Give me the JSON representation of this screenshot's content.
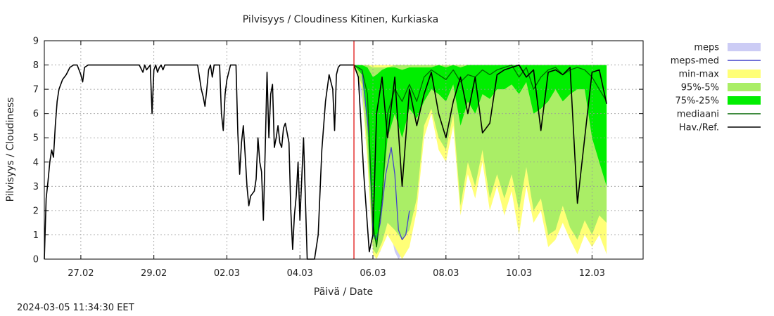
{
  "chart_data": {
    "type": "area",
    "title": "Pilvisyys / Cloudiness Kitinen, Kurkiaska",
    "xlabel": "Päivä / Date",
    "ylabel": "Pilvisyys / Cloudiness",
    "ylim": [
      0,
      9
    ],
    "xlim_days": [
      0,
      16.4
    ],
    "y_ticks": [
      0,
      1,
      2,
      3,
      4,
      5,
      6,
      7,
      8,
      9
    ],
    "x_ticks": [
      {
        "label": "27.02",
        "day": 1
      },
      {
        "label": "29.02",
        "day": 3
      },
      {
        "label": "02.03",
        "day": 5
      },
      {
        "label": "04.03",
        "day": 7
      },
      {
        "label": "06.03",
        "day": 9
      },
      {
        "label": "08.03",
        "day": 11
      },
      {
        "label": "10.03",
        "day": 13
      },
      {
        "label": "12.03",
        "day": 15
      }
    ],
    "grid": true,
    "legend_position": "right",
    "forecast_start_day": 8.48,
    "timestamp": "2024-03-05 11:34:30 EET",
    "legend": [
      {
        "label": "meps",
        "kind": "box",
        "color": "#ccccf5"
      },
      {
        "label": "meps-med",
        "kind": "line",
        "color": "#4444cc"
      },
      {
        "label": "min-max",
        "kind": "box",
        "color": "#ffff77"
      },
      {
        "label": "95%-5%",
        "kind": "box",
        "color": "#aaee66"
      },
      {
        "label": "75%-25%",
        "kind": "box",
        "color": "#00ee00"
      },
      {
        "label": "mediaani",
        "kind": "line",
        "color": "#006600"
      },
      {
        "label": "Hav./Ref.",
        "kind": "line",
        "color": "#000000"
      }
    ],
    "colors": {
      "meps": "#ccccf5",
      "meps_med": "#4444cc",
      "minmax": "#ffff77",
      "p95_5": "#aaee66",
      "p75_25": "#00ee00",
      "median": "#006600",
      "observed": "#000000",
      "forecast_line": "#dd0000"
    },
    "series": {
      "meps": {
        "x": [
          8.48,
          8.6,
          8.75,
          8.9,
          9.0,
          9.1,
          9.2,
          9.3,
          9.4,
          9.5,
          9.6,
          9.7,
          9.8,
          9.9,
          10.0,
          10.1,
          10.2
        ],
        "low": [
          8.0,
          7.5,
          6.0,
          3.0,
          0.5,
          0.2,
          0.3,
          1.0,
          1.8,
          1.0,
          0.3,
          0.0,
          0.2,
          1.0,
          1.5,
          2.0,
          2.5
        ],
        "high": [
          8.0,
          8.0,
          8.0,
          7.8,
          6.5,
          5.0,
          4.2,
          4.8,
          5.0,
          4.5,
          3.8,
          3.0,
          2.6,
          2.6,
          2.4,
          2.6,
          2.5
        ]
      },
      "meps_med": {
        "x": [
          8.48,
          8.7,
          8.9,
          9.0,
          9.1,
          9.2,
          9.35,
          9.5,
          9.6,
          9.7,
          9.8,
          9.9,
          10.0
        ],
        "y": [
          8.0,
          7.8,
          5.0,
          1.0,
          0.8,
          1.5,
          3.5,
          4.6,
          3.5,
          1.2,
          0.8,
          1.0,
          2.0
        ]
      },
      "minmax": {
        "x": [
          8.48,
          8.7,
          8.85,
          9.0,
          9.1,
          9.25,
          9.4,
          9.6,
          9.8,
          10.0,
          10.2,
          10.4,
          10.6,
          10.8,
          11.0,
          11.2,
          11.4,
          11.6,
          11.8,
          12.0,
          12.2,
          12.4,
          12.6,
          12.8,
          13.0,
          13.2,
          13.4,
          13.6,
          13.8,
          14.0,
          14.2,
          14.4,
          14.6,
          14.8,
          15.0,
          15.2,
          15.4
        ],
        "low": [
          8.0,
          7.0,
          4.0,
          0.2,
          0.0,
          0.5,
          1.0,
          0.5,
          0.0,
          0.5,
          2.0,
          5.0,
          6.0,
          4.5,
          4.0,
          5.5,
          1.8,
          3.5,
          2.5,
          4.0,
          2.0,
          3.0,
          1.8,
          2.8,
          1.0,
          3.0,
          1.5,
          2.0,
          0.5,
          0.8,
          1.5,
          0.8,
          0.2,
          1.0,
          0.5,
          1.0,
          0.2
        ],
        "high": [
          8.0,
          8.0,
          8.0,
          8.0,
          8.0,
          8.0,
          8.0,
          8.0,
          8.0,
          8.0,
          8.0,
          8.0,
          8.0,
          8.0,
          8.0,
          8.0,
          8.0,
          8.0,
          8.0,
          8.0,
          8.0,
          8.0,
          8.0,
          8.0,
          8.0,
          8.0,
          8.0,
          8.0,
          8.0,
          8.0,
          8.0,
          8.0,
          8.0,
          8.0,
          8.0,
          8.0,
          8.0
        ]
      },
      "p95_5": {
        "x": [
          8.48,
          8.7,
          8.85,
          9.0,
          9.1,
          9.25,
          9.4,
          9.6,
          9.8,
          10.0,
          10.2,
          10.4,
          10.6,
          10.8,
          11.0,
          11.2,
          11.4,
          11.6,
          11.8,
          12.0,
          12.2,
          12.4,
          12.6,
          12.8,
          13.0,
          13.2,
          13.4,
          13.6,
          13.8,
          14.0,
          14.2,
          14.4,
          14.6,
          14.8,
          15.0,
          15.2,
          15.4
        ],
        "low": [
          8.0,
          7.2,
          4.5,
          0.4,
          0.2,
          0.7,
          1.5,
          1.2,
          0.8,
          1.2,
          2.5,
          5.5,
          6.2,
          5.0,
          4.5,
          6.0,
          2.2,
          4.0,
          3.0,
          4.5,
          2.5,
          3.5,
          2.5,
          3.5,
          2.0,
          3.8,
          2.0,
          2.5,
          1.0,
          1.2,
          2.2,
          1.3,
          0.8,
          1.6,
          1.0,
          1.8,
          1.5
        ],
        "high": [
          8.0,
          8.0,
          8.0,
          7.9,
          7.9,
          7.9,
          7.9,
          8.0,
          8.0,
          8.0,
          8.0,
          8.0,
          8.0,
          8.0,
          8.0,
          8.0,
          8.0,
          8.0,
          8.0,
          8.0,
          8.0,
          8.0,
          8.0,
          8.0,
          8.0,
          8.0,
          8.0,
          8.0,
          8.0,
          8.0,
          8.0,
          8.0,
          8.0,
          8.0,
          8.0,
          8.0,
          8.0
        ]
      },
      "p75_25": {
        "x": [
          8.48,
          8.7,
          8.85,
          9.0,
          9.1,
          9.25,
          9.4,
          9.6,
          9.8,
          10.0,
          10.2,
          10.4,
          10.6,
          10.8,
          11.0,
          11.2,
          11.4,
          11.6,
          11.8,
          12.0,
          12.2,
          12.4,
          12.6,
          12.8,
          13.0,
          13.2,
          13.4,
          13.6,
          13.8,
          14.0,
          14.2,
          14.4,
          14.6,
          14.8,
          15.0,
          15.2,
          15.4
        ],
        "low": [
          8.0,
          7.6,
          5.5,
          1.0,
          0.6,
          2.5,
          5.0,
          6.0,
          5.0,
          6.2,
          5.8,
          6.5,
          7.0,
          6.8,
          6.5,
          7.2,
          5.5,
          6.5,
          6.0,
          6.8,
          6.6,
          7.0,
          7.0,
          7.2,
          6.8,
          7.3,
          6.0,
          6.2,
          6.5,
          7.0,
          6.5,
          6.8,
          7.0,
          7.0,
          5.0,
          4.0,
          3.0
        ],
        "high": [
          8.0,
          8.0,
          7.9,
          7.5,
          7.6,
          7.8,
          7.9,
          7.9,
          7.8,
          7.9,
          7.9,
          7.9,
          7.9,
          8.0,
          7.9,
          8.0,
          7.9,
          8.0,
          8.0,
          8.0,
          8.0,
          8.0,
          8.0,
          8.0,
          8.0,
          8.0,
          8.0,
          8.0,
          8.0,
          8.0,
          8.0,
          8.0,
          8.0,
          8.0,
          8.0,
          8.0,
          8.0
        ]
      },
      "median": {
        "x": [
          8.48,
          8.7,
          8.85,
          9.0,
          9.1,
          9.25,
          9.4,
          9.6,
          9.8,
          10.0,
          10.2,
          10.4,
          10.6,
          10.8,
          11.0,
          11.2,
          11.4,
          11.6,
          11.8,
          12.0,
          12.2,
          12.4,
          12.6,
          12.8,
          13.0,
          13.2,
          13.4,
          13.6,
          13.8,
          14.0,
          14.2,
          14.4,
          14.6,
          14.8,
          15.0,
          15.2,
          15.4
        ],
        "y": [
          8.0,
          7.8,
          6.8,
          1.5,
          0.5,
          2.5,
          6.0,
          7.0,
          6.5,
          7.2,
          6.5,
          7.5,
          7.8,
          7.6,
          7.4,
          7.8,
          7.3,
          7.6,
          7.5,
          7.8,
          7.6,
          7.8,
          7.9,
          8.0,
          7.5,
          7.9,
          7.0,
          7.5,
          7.8,
          7.9,
          7.6,
          7.8,
          7.9,
          7.8,
          7.5,
          7.0,
          6.5
        ]
      },
      "observed": {
        "x": [
          0.0,
          0.05,
          0.1,
          0.15,
          0.2,
          0.25,
          0.3,
          0.35,
          0.4,
          0.5,
          0.6,
          0.7,
          0.8,
          0.9,
          1.0,
          1.05,
          1.1,
          1.2,
          1.4,
          1.6,
          1.8,
          2.0,
          2.2,
          2.4,
          2.6,
          2.7,
          2.75,
          2.8,
          2.85,
          2.9,
          2.95,
          3.0,
          3.05,
          3.1,
          3.15,
          3.2,
          3.25,
          3.3,
          3.4,
          3.6,
          3.8,
          4.0,
          4.2,
          4.3,
          4.35,
          4.4,
          4.45,
          4.5,
          4.55,
          4.6,
          4.65,
          4.7,
          4.75,
          4.8,
          4.85,
          4.9,
          4.95,
          5.0,
          5.1,
          5.2,
          5.25,
          5.3,
          5.35,
          5.4,
          5.45,
          5.5,
          5.55,
          5.6,
          5.65,
          5.7,
          5.75,
          5.8,
          5.85,
          5.9,
          5.95,
          6.0,
          6.05,
          6.1,
          6.15,
          6.2,
          6.25,
          6.3,
          6.35,
          6.4,
          6.45,
          6.5,
          6.55,
          6.6,
          6.65,
          6.7,
          6.75,
          6.8,
          6.85,
          6.9,
          6.95,
          7.0,
          7.1,
          7.2,
          7.3,
          7.4,
          7.5,
          7.6,
          7.7,
          7.8,
          7.9,
          7.95,
          8.0,
          8.05,
          8.1,
          8.2,
          8.3,
          8.4,
          8.48,
          8.6,
          8.75,
          8.9,
          9.0,
          9.1,
          9.25,
          9.4,
          9.6,
          9.8,
          10.0,
          10.2,
          10.4,
          10.6,
          10.8,
          11.0,
          11.2,
          11.4,
          11.6,
          11.8,
          12.0,
          12.2,
          12.4,
          12.6,
          12.8,
          13.0,
          13.2,
          13.4,
          13.6,
          13.8,
          14.0,
          14.2,
          14.4,
          14.6,
          14.8,
          15.0,
          15.2,
          15.4
        ],
        "y": [
          0.0,
          2.5,
          3.2,
          4.0,
          4.5,
          4.2,
          5.5,
          6.5,
          7.0,
          7.4,
          7.6,
          7.9,
          8.0,
          8.0,
          7.6,
          7.3,
          7.9,
          8.0,
          8.0,
          8.0,
          8.0,
          8.0,
          8.0,
          8.0,
          8.0,
          7.7,
          8.0,
          7.8,
          7.9,
          8.0,
          6.0,
          7.8,
          8.0,
          7.7,
          7.9,
          8.0,
          7.8,
          8.0,
          8.0,
          8.0,
          8.0,
          8.0,
          8.0,
          7.0,
          6.7,
          6.3,
          7.0,
          7.8,
          8.0,
          7.5,
          8.0,
          8.0,
          8.0,
          8.0,
          6.0,
          5.3,
          6.8,
          7.4,
          8.0,
          8.0,
          8.0,
          5.2,
          3.5,
          4.8,
          5.5,
          4.3,
          3.0,
          2.2,
          2.6,
          2.7,
          2.8,
          3.3,
          5.0,
          4.0,
          3.6,
          1.6,
          4.5,
          7.7,
          5.0,
          6.8,
          7.2,
          4.6,
          5.0,
          5.5,
          4.8,
          4.6,
          5.4,
          5.6,
          5.2,
          4.8,
          2.0,
          0.4,
          1.8,
          2.6,
          4.0,
          1.6,
          5.0,
          0.0,
          0.0,
          0.0,
          1.0,
          4.5,
          6.5,
          7.6,
          7.0,
          5.3,
          7.6,
          7.9,
          8.0,
          8.0,
          8.0,
          8.0,
          8.0,
          7.5,
          3.5,
          0.3,
          1.0,
          6.0,
          7.5,
          5.0,
          7.5,
          3.0,
          7.0,
          5.5,
          6.8,
          7.7,
          6.0,
          5.0,
          6.5,
          7.5,
          6.0,
          7.5,
          5.2,
          5.6,
          7.6,
          7.8,
          7.9,
          8.0,
          7.5,
          7.8,
          5.3,
          7.7,
          7.8,
          7.6,
          7.9,
          2.3,
          5.0,
          7.7,
          7.8,
          6.4
        ]
      }
    }
  }
}
